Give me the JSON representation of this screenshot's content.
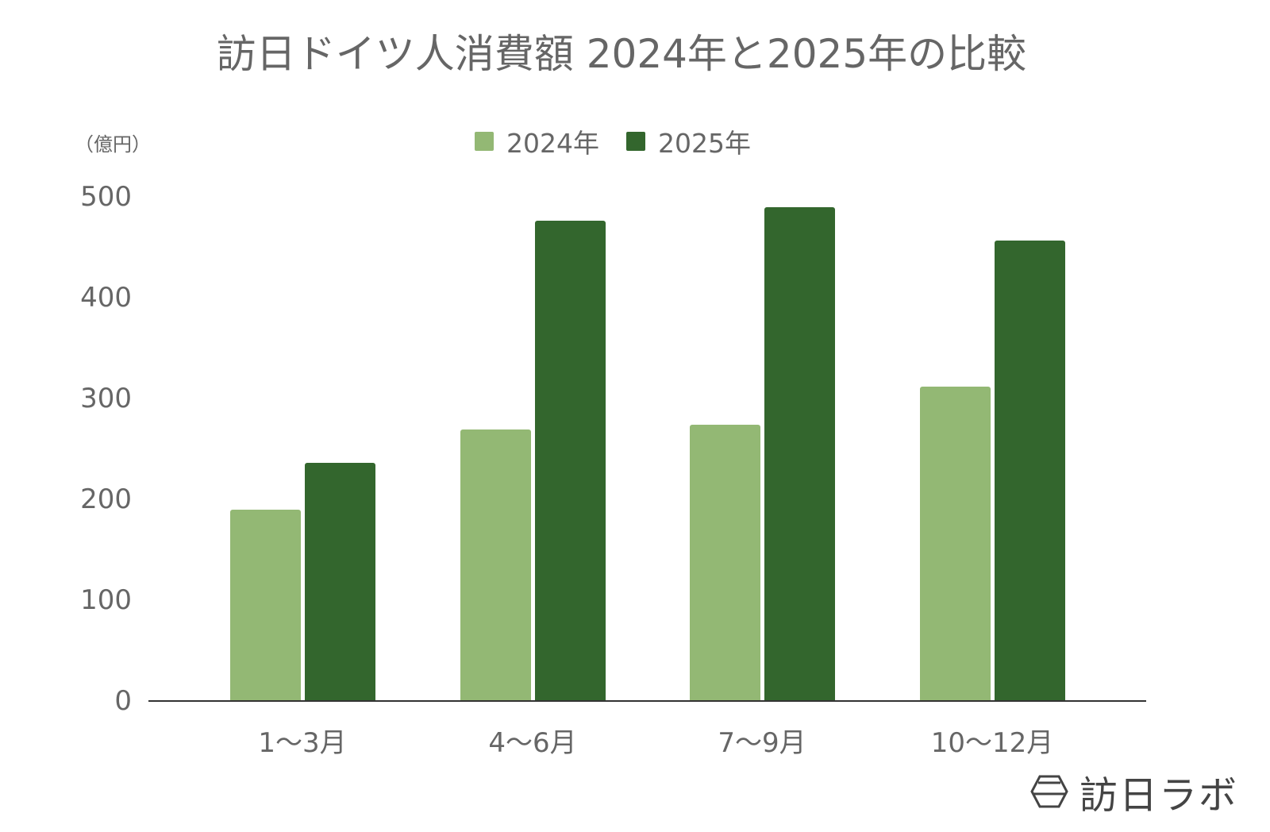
{
  "title": "訪日ドイツ人消費額 2024年と2025年の比較",
  "unit_label": "（億円）",
  "legend": [
    {
      "label": "2024年",
      "color": "#93b874"
    },
    {
      "label": "2025年",
      "color": "#33662d"
    }
  ],
  "y_ticks": [
    "0",
    "100",
    "200",
    "300",
    "400",
    "500"
  ],
  "x_labels": [
    "1〜3月",
    "4〜6月",
    "7〜9月",
    "10〜12月"
  ],
  "logo": {
    "text": "訪日ラボ",
    "icon": "hexagon-logo-icon"
  },
  "chart_data": {
    "type": "bar",
    "title": "訪日ドイツ人消費額 2024年と2025年の比較",
    "xlabel": "",
    "ylabel": "（億円）",
    "categories": [
      "1〜3月",
      "4〜6月",
      "7〜9月",
      "10〜12月"
    ],
    "series": [
      {
        "name": "2024年",
        "color": "#93b874",
        "values": [
          190,
          269,
          274,
          312
        ]
      },
      {
        "name": "2025年",
        "color": "#33662d",
        "values": [
          236,
          476,
          490,
          457
        ]
      }
    ],
    "ylim": [
      0,
      500
    ],
    "yticks": [
      0,
      100,
      200,
      300,
      400,
      500
    ],
    "grid": false,
    "legend_position": "top"
  }
}
